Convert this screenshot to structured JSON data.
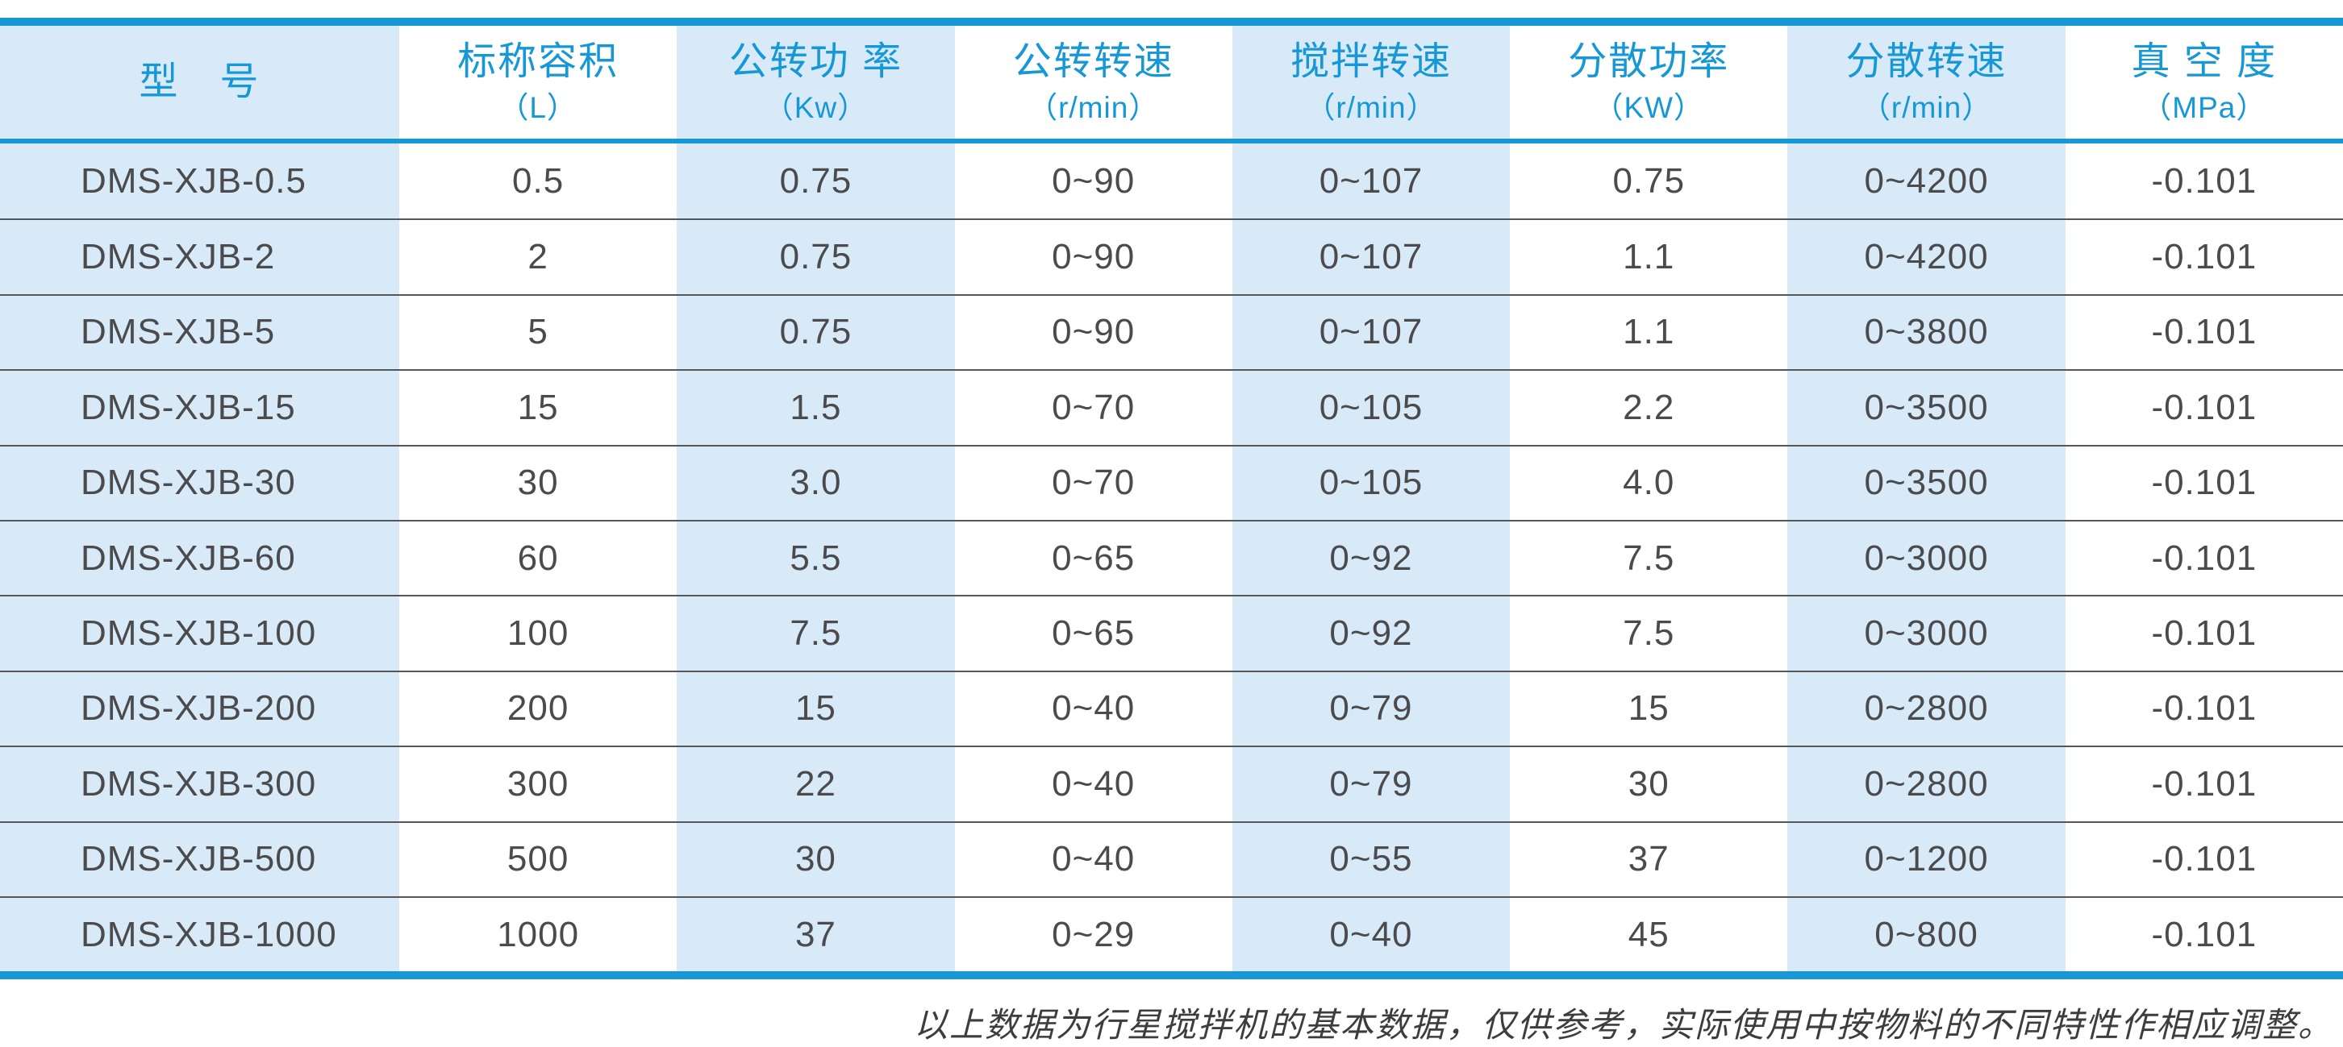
{
  "chart_data": {
    "type": "table",
    "columns": [
      {
        "title": "型　号",
        "unit": ""
      },
      {
        "title": "标称容积",
        "unit": "（L）"
      },
      {
        "title": "公转功 率",
        "unit": "（Kw）"
      },
      {
        "title": "公转转速",
        "unit": "（r/min）"
      },
      {
        "title": "搅拌转速",
        "unit": "（r/min）"
      },
      {
        "title": "分散功率",
        "unit": "（KW）"
      },
      {
        "title": "分散转速",
        "unit": "（r/min）"
      },
      {
        "title": "真 空 度",
        "unit": "（MPa）"
      }
    ],
    "rows": [
      [
        "DMS-XJB-0.5",
        "0.5",
        "0.75",
        "0~90",
        "0~107",
        "0.75",
        "0~4200",
        "-0.101"
      ],
      [
        "DMS-XJB-2",
        "2",
        "0.75",
        "0~90",
        "0~107",
        "1.1",
        "0~4200",
        "-0.101"
      ],
      [
        "DMS-XJB-5",
        "5",
        "0.75",
        "0~90",
        "0~107",
        "1.1",
        "0~3800",
        "-0.101"
      ],
      [
        "DMS-XJB-15",
        "15",
        "1.5",
        "0~70",
        "0~105",
        "2.2",
        "0~3500",
        "-0.101"
      ],
      [
        "DMS-XJB-30",
        "30",
        "3.0",
        "0~70",
        "0~105",
        "4.0",
        "0~3500",
        "-0.101"
      ],
      [
        "DMS-XJB-60",
        "60",
        "5.5",
        "0~65",
        "0~92",
        "7.5",
        "0~3000",
        "-0.101"
      ],
      [
        "DMS-XJB-100",
        "100",
        "7.5",
        "0~65",
        "0~92",
        "7.5",
        "0~3000",
        "-0.101"
      ],
      [
        "DMS-XJB-200",
        "200",
        "15",
        "0~40",
        "0~79",
        "15",
        "0~2800",
        "-0.101"
      ],
      [
        "DMS-XJB-300",
        "300",
        "22",
        "0~40",
        "0~79",
        "30",
        "0~2800",
        "-0.101"
      ],
      [
        "DMS-XJB-500",
        "500",
        "30",
        "0~40",
        "0~55",
        "37",
        "0~1200",
        "-0.101"
      ],
      [
        "DMS-XJB-1000",
        "1000",
        "37",
        "0~29",
        "0~40",
        "45",
        "0~800",
        "-0.101"
      ]
    ],
    "note": "以上数据为行星搅拌机的基本数据，仅供参考，实际使用中按物料的不同特性作相应调整。"
  },
  "colors": {
    "accent_blue": "#1697d6",
    "stripe_blue": "#d8eaf8",
    "text_dark": "#4b4b4e",
    "separator_gray": "#565656"
  }
}
